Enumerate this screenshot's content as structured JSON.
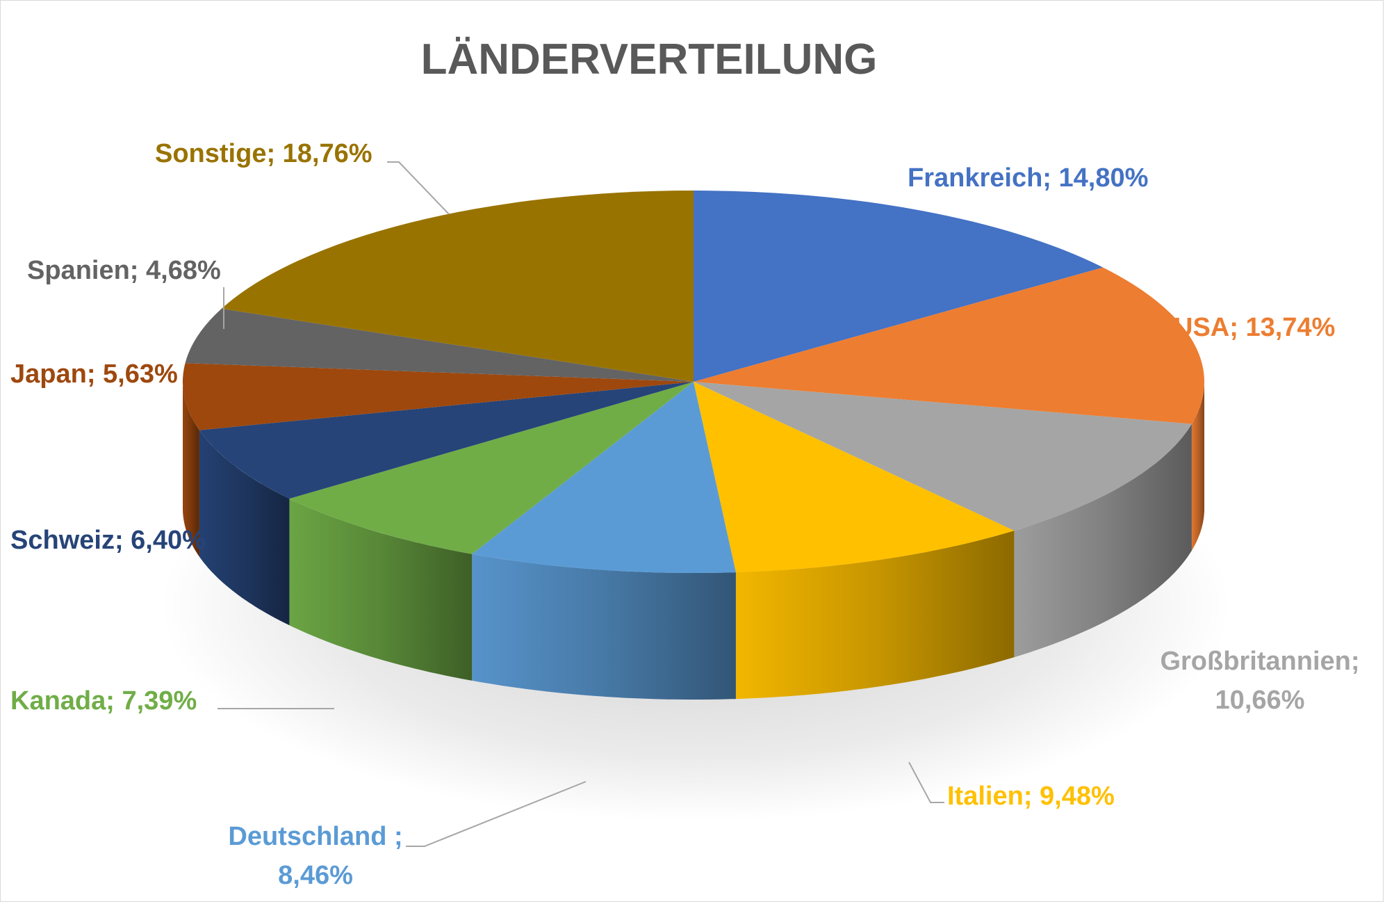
{
  "chart_data": {
    "type": "pie",
    "style": "3d",
    "title": "LÄNDERVERTEILUNG",
    "legend": "none",
    "slices": [
      {
        "name": "Frankreich",
        "value": 14.8,
        "label": "Frankreich; 14,80%",
        "color": "#4472C4",
        "label_color": "#4472C4"
      },
      {
        "name": "USA",
        "value": 13.74,
        "label": "USA; 13,74%",
        "color": "#ED7D31",
        "label_color": "#ED7D31"
      },
      {
        "name": "Großbritannien",
        "value": 10.66,
        "label_lines": [
          "Großbritannien;",
          "10,66%"
        ],
        "color": "#A5A5A5",
        "label_color": "#A5A5A5"
      },
      {
        "name": "Italien",
        "value": 9.48,
        "label": "Italien; 9,48%",
        "color": "#FFC000",
        "label_color": "#FFC000"
      },
      {
        "name": "Deutschland",
        "value": 8.46,
        "label_lines": [
          "Deutschland ;",
          "8,46%"
        ],
        "color": "#5B9BD5",
        "label_color": "#5B9BD5"
      },
      {
        "name": "Kanada",
        "value": 7.39,
        "label": "Kanada; 7,39%",
        "color": "#70AD47",
        "label_color": "#70AD47"
      },
      {
        "name": "Schweiz",
        "value": 6.4,
        "label": "Schweiz; 6,40%",
        "color": "#264478",
        "label_color": "#264478"
      },
      {
        "name": "Japan",
        "value": 5.63,
        "label": "Japan; 5,63%",
        "color": "#9E480E",
        "label_color": "#9E480E"
      },
      {
        "name": "Spanien",
        "value": 4.68,
        "label": "Spanien; 4,68%",
        "color": "#636363",
        "label_color": "#636363"
      },
      {
        "name": "Sonstige",
        "value": 18.76,
        "label": "Sonstige; 18,76%",
        "color": "#997300",
        "label_color": "#997300"
      }
    ]
  }
}
